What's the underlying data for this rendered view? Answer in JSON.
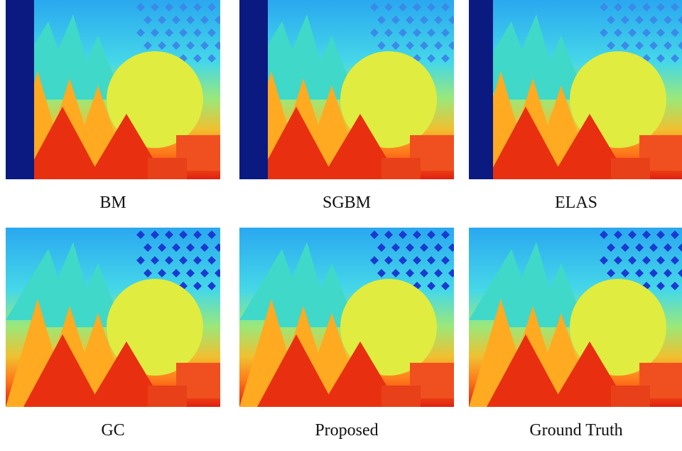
{
  "panels": [
    {
      "label": "BM"
    },
    {
      "label": "SGBM"
    },
    {
      "label": "ELAS"
    },
    {
      "label": "GC"
    },
    {
      "label": "Proposed"
    },
    {
      "label": "Ground Truth"
    }
  ]
}
